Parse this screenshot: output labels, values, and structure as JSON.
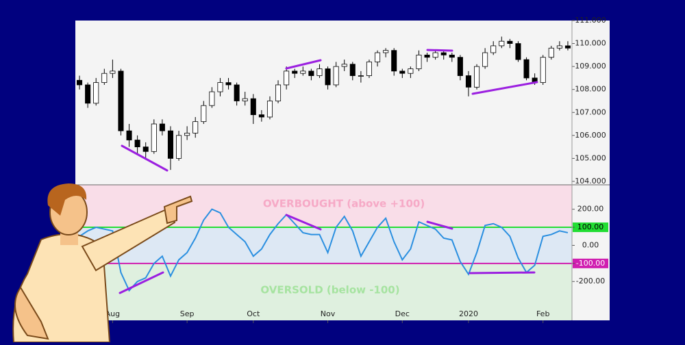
{
  "chart_data": [
    {
      "type": "candlestick",
      "up_color": "#ffffff",
      "down_color": "#000000",
      "open": [
        108.4,
        108.2,
        107.4,
        108.3,
        108.7,
        108.8,
        106.2,
        105.8,
        105.5,
        105.3,
        106.5,
        106.2,
        105.0,
        106.0,
        106.1,
        106.6,
        107.3,
        107.9,
        108.3,
        108.2,
        107.5,
        107.6,
        106.9,
        106.8,
        107.5,
        108.2,
        108.8,
        108.7,
        108.8,
        108.6,
        108.9,
        108.2,
        109.0,
        109.1,
        108.6,
        108.6,
        109.2,
        109.6,
        109.7,
        108.8,
        108.7,
        108.9,
        109.5,
        109.4,
        109.6,
        109.5,
        109.4,
        108.6,
        108.1,
        109.0,
        109.6,
        109.9,
        110.1,
        110.0,
        109.3,
        108.5,
        108.3,
        109.4,
        109.8,
        109.9
      ],
      "high": [
        108.6,
        108.3,
        108.5,
        108.9,
        109.3,
        108.9,
        106.5,
        106.0,
        105.7,
        106.7,
        106.7,
        106.4,
        106.2,
        106.4,
        106.8,
        107.5,
        108.1,
        108.5,
        108.5,
        108.3,
        107.9,
        107.8,
        107.1,
        107.7,
        108.4,
        109.0,
        108.9,
        109.0,
        108.9,
        109.1,
        109.0,
        109.2,
        109.3,
        109.2,
        108.8,
        109.3,
        109.7,
        109.8,
        109.8,
        108.9,
        109.0,
        109.7,
        109.6,
        109.7,
        109.7,
        109.6,
        109.5,
        108.8,
        109.1,
        109.8,
        110.1,
        110.3,
        110.2,
        110.1,
        109.4,
        108.7,
        109.5,
        109.9,
        110.1,
        110.1
      ],
      "low": [
        108.0,
        107.2,
        107.3,
        108.2,
        108.5,
        106.0,
        105.5,
        105.2,
        105.0,
        105.2,
        106.0,
        104.5,
        104.9,
        105.8,
        105.9,
        106.5,
        107.2,
        107.7,
        108.0,
        107.3,
        107.3,
        106.5,
        106.6,
        106.7,
        107.4,
        108.0,
        108.5,
        108.6,
        108.4,
        108.5,
        108.0,
        108.1,
        108.8,
        108.4,
        108.3,
        108.5,
        109.0,
        109.4,
        108.6,
        108.5,
        108.5,
        108.8,
        109.2,
        109.3,
        109.3,
        109.2,
        108.4,
        107.7,
        108.0,
        108.9,
        109.5,
        109.8,
        109.8,
        109.2,
        108.4,
        108.2,
        108.2,
        109.3,
        109.7,
        109.7
      ],
      "close": [
        108.2,
        107.4,
        108.3,
        108.7,
        108.8,
        106.2,
        105.8,
        105.5,
        105.3,
        106.5,
        106.2,
        105.0,
        106.0,
        106.1,
        106.6,
        107.3,
        107.9,
        108.3,
        108.2,
        107.5,
        107.6,
        106.9,
        106.8,
        107.5,
        108.2,
        108.8,
        108.7,
        108.8,
        108.6,
        108.9,
        108.2,
        109.0,
        109.1,
        108.6,
        108.6,
        109.2,
        109.6,
        109.7,
        108.8,
        108.7,
        108.9,
        109.5,
        109.4,
        109.6,
        109.5,
        109.4,
        108.6,
        108.1,
        109.0,
        109.6,
        109.9,
        110.1,
        110.0,
        109.3,
        108.5,
        108.3,
        109.4,
        109.8,
        109.9,
        109.8
      ],
      "ylim": [
        103.85,
        111.0
      ],
      "yticks": [
        {
          "value": 104,
          "label": "104.000"
        },
        {
          "value": 105,
          "label": "105.000"
        },
        {
          "value": 106,
          "label": "106.000"
        },
        {
          "value": 107,
          "label": "107.000"
        },
        {
          "value": 108,
          "label": "108.000"
        },
        {
          "value": 109,
          "label": "109.000"
        },
        {
          "value": 110,
          "label": "110.000"
        },
        {
          "value": 111,
          "label": "111.000"
        }
      ]
    },
    {
      "type": "line",
      "color": "#2a8fe0",
      "categories": [
        null,
        null,
        null,
        null,
        "Aug",
        null,
        null,
        null,
        null,
        null,
        null,
        null,
        null,
        "Sep",
        null,
        null,
        null,
        null,
        null,
        null,
        null,
        "Oct",
        null,
        null,
        null,
        null,
        null,
        null,
        null,
        null,
        "Nov",
        null,
        null,
        null,
        null,
        null,
        null,
        null,
        null,
        "Dec",
        null,
        null,
        null,
        null,
        null,
        null,
        null,
        "2020",
        null,
        null,
        null,
        null,
        null,
        null,
        null,
        null,
        "Feb",
        null,
        null,
        null
      ],
      "values": [
        50,
        80,
        100,
        90,
        80,
        -150,
        -250,
        -200,
        -180,
        -100,
        -60,
        -170,
        -80,
        -40,
        40,
        140,
        200,
        180,
        100,
        60,
        20,
        -60,
        -20,
        60,
        120,
        170,
        120,
        70,
        60,
        60,
        -40,
        100,
        160,
        80,
        -60,
        20,
        100,
        150,
        20,
        -80,
        -20,
        130,
        110,
        90,
        40,
        30,
        -90,
        -160,
        -40,
        110,
        120,
        100,
        50,
        -70,
        -150,
        -110,
        50,
        60,
        80,
        70
      ],
      "ylim": [
        -415,
        335
      ],
      "yticks": [
        {
          "value": 200,
          "label": "200.00"
        },
        {
          "value": 100,
          "label": "100.00"
        },
        {
          "value": 0,
          "label": "0.00"
        },
        {
          "value": -100,
          "label": "-100.00"
        },
        {
          "value": -200,
          "label": "-200.00"
        }
      ],
      "reference_lines": [
        {
          "value": 100,
          "color": "#22dd33"
        },
        {
          "value": -100,
          "color": "#d01fb0"
        }
      ],
      "annotations": [
        "OVERBOUGHT (above  +100)",
        "OVERSOLD (below -100)"
      ]
    }
  ]
}
